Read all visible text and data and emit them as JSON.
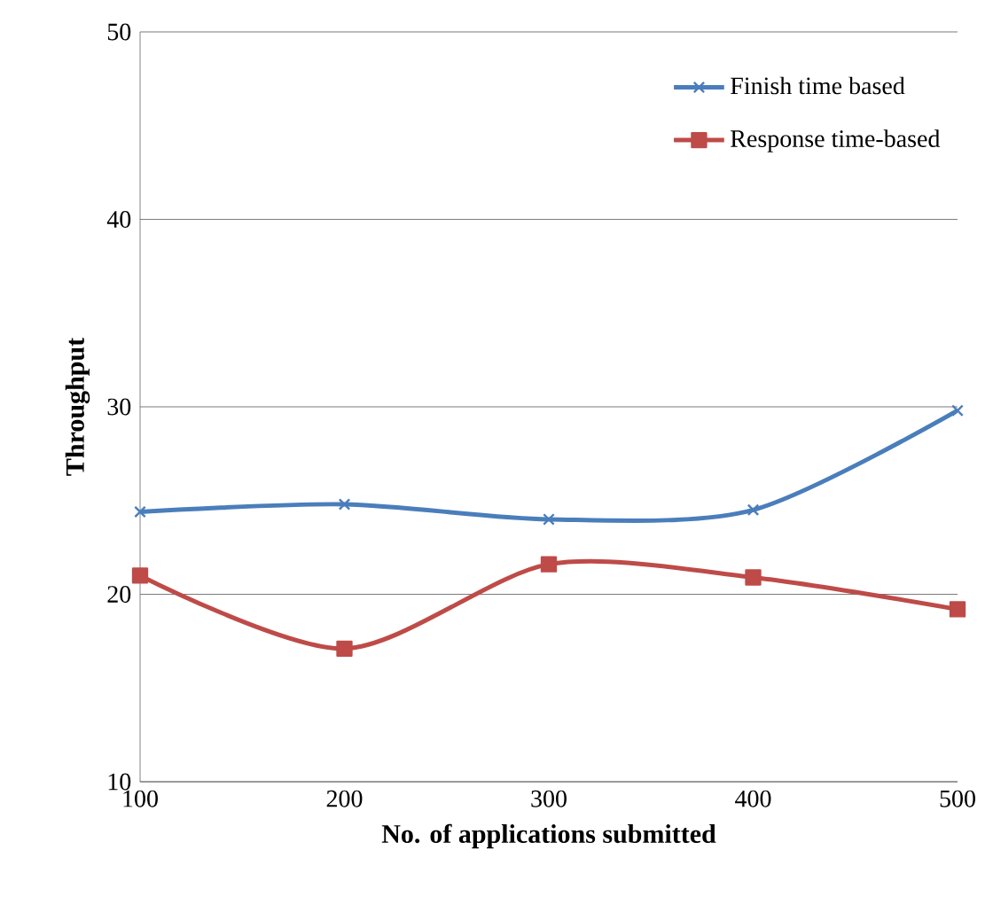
{
  "chart_data": {
    "type": "line",
    "xlabel": "No. of applications submitted",
    "ylabel": "Throughput",
    "x": [
      100,
      200,
      300,
      400,
      500
    ],
    "xlim": [
      100,
      500
    ],
    "xticks": [
      100,
      200,
      300,
      400,
      500
    ],
    "ylim": [
      10,
      50
    ],
    "yticks": [
      10,
      20,
      30,
      40,
      50
    ],
    "grid": "y",
    "legend": "top right",
    "series": [
      {
        "name": "Finish time based",
        "color": "#4a7ebb",
        "marker": "cross",
        "values": [
          24.4,
          24.8,
          24.0,
          24.5,
          29.8
        ]
      },
      {
        "name": "Response time-based",
        "color": "#be4b48",
        "marker": "square",
        "values": [
          21.0,
          17.1,
          21.6,
          20.9,
          19.2
        ]
      }
    ]
  }
}
